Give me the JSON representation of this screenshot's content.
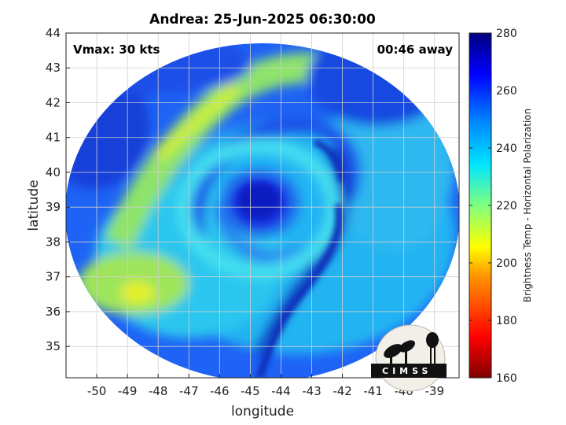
{
  "figure": {
    "title": "Andrea: 25-Jun-2025 06:30:00",
    "vmax_text": "Vmax: 30 kts",
    "time_away_text": "00:46 away",
    "xlabel": "longitude",
    "ylabel": "latitude",
    "colorbar_label": "Brightness Temp - Horizontal Polarization",
    "logo_text": "CIMSS"
  },
  "chart_data": {
    "type": "heatmap",
    "x_ticks": [
      "-50",
      "-49",
      "-48",
      "-47",
      "-46",
      "-45",
      "-44",
      "-43",
      "-42",
      "-41",
      "-40",
      "-39"
    ],
    "x_tick_values": [
      -50,
      -49,
      -48,
      -47,
      -46,
      -45,
      -44,
      -43,
      -42,
      -41,
      -40,
      -39
    ],
    "y_ticks": [
      "35",
      "36",
      "37",
      "38",
      "39",
      "40",
      "41",
      "42",
      "43",
      "44"
    ],
    "y_tick_values": [
      35,
      36,
      37,
      38,
      39,
      40,
      41,
      42,
      43,
      44
    ],
    "xlim": [
      -51.0,
      -38.2
    ],
    "ylim": [
      34.1,
      44
    ],
    "grid": true,
    "colorbar_ticks": [
      "160",
      "180",
      "200",
      "220",
      "240",
      "260",
      "280"
    ],
    "colorbar_range": [
      160,
      280
    ],
    "colormap": "jet",
    "storm_center": {
      "lon": -44.4,
      "lat": 39.1
    }
  },
  "colors": {
    "frame": "#222222",
    "grid": "#d0d0d0"
  }
}
